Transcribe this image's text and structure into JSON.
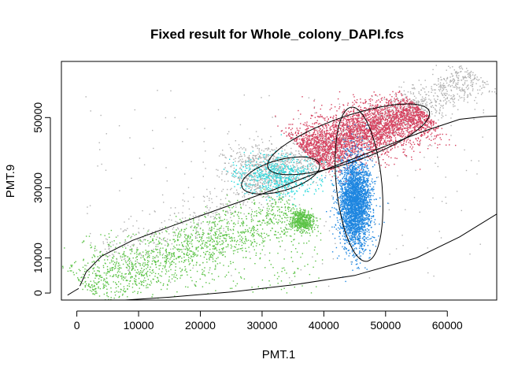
{
  "chart_data": {
    "type": "scatter",
    "title": "Fixed result for Whole_colony_DAPI.fcs",
    "xlabel": "PMT.1",
    "ylabel": "PMT.9",
    "xlim": [
      -2500,
      68000
    ],
    "ylim": [
      -2000,
      66000
    ],
    "xticks": [
      {
        "value": 0,
        "label": "0"
      },
      {
        "value": 10000,
        "label": "10000"
      },
      {
        "value": 20000,
        "label": "20000"
      },
      {
        "value": 30000,
        "label": "30000"
      },
      {
        "value": 40000,
        "label": "40000"
      },
      {
        "value": 50000,
        "label": "50000"
      },
      {
        "value": 60000,
        "label": "60000"
      }
    ],
    "yticks": [
      {
        "value": 0,
        "label": "0"
      },
      {
        "value": 10000,
        "label": "10000"
      },
      {
        "value": 30000,
        "label": "30000"
      },
      {
        "value": 50000,
        "label": "50000"
      }
    ],
    "grid": false,
    "legend": "none",
    "series": [
      {
        "color": "#b0b0b0",
        "clusters": [
          {
            "type": "band",
            "from": [
              28000,
              30000
            ],
            "to": [
              65000,
              62000
            ],
            "spread": 2500,
            "n": 1500
          },
          {
            "type": "band",
            "from": [
              5000,
              10000
            ],
            "to": [
              30000,
              30000
            ],
            "spread": 3000,
            "n": 320
          },
          {
            "type": "blob",
            "center": [
              30000,
              37000
            ],
            "sd": [
              3500,
              2800
            ],
            "n": 400
          },
          {
            "type": "uniform",
            "xrange": [
              1000,
              66000
            ],
            "yrange": [
              2000,
              58000
            ],
            "n": 200
          }
        ]
      },
      {
        "color": "#5bc346",
        "clusters": [
          {
            "type": "band",
            "from": [
              1000,
              2000
            ],
            "to": [
              36000,
              24000
            ],
            "spread": 3500,
            "n": 1400
          },
          {
            "type": "blob",
            "center": [
              36500,
              20500
            ],
            "sd": [
              1000,
              1500
            ],
            "n": 420
          },
          {
            "type": "uniform",
            "xrange": [
              0,
              40000
            ],
            "yrange": [
              0,
              18000
            ],
            "n": 250
          }
        ]
      },
      {
        "color": "#d6415f",
        "clusters": [
          {
            "type": "band",
            "from": [
              37000,
              40000
            ],
            "to": [
              56000,
              52000
            ],
            "spread": 3500,
            "n": 3500
          }
        ]
      },
      {
        "color": "#1e86e0",
        "clusters": [
          {
            "type": "blob",
            "center": [
              45000,
              26000
            ],
            "sd": [
              1300,
              6500
            ],
            "n": 2800
          }
        ]
      },
      {
        "color": "#2ad9dd",
        "clusters": [
          {
            "type": "blob",
            "center": [
              32500,
              33500
            ],
            "sd": [
              3500,
              3000
            ],
            "n": 600
          }
        ]
      }
    ],
    "gates": [
      {
        "name": "debris-gate",
        "type": "ellipse",
        "center": [
          33000,
          33500
        ],
        "axes": [
          7200,
          4000
        ],
        "angle_deg": 35
      },
      {
        "name": "red-gate",
        "type": "ellipse",
        "center": [
          44000,
          43800
        ],
        "axes": [
          15500,
          5800
        ],
        "angle_deg": 35
      },
      {
        "name": "blue-gate",
        "type": "ellipse",
        "center": [
          45700,
          31000
        ],
        "axes": [
          3700,
          22000
        ],
        "angle_deg": 3
      },
      {
        "name": "main-gate",
        "type": "curve",
        "points": [
          [
            500,
            2000
          ],
          [
            1500,
            6000
          ],
          [
            4000,
            10500
          ],
          [
            9000,
            15000
          ],
          [
            16000,
            19500
          ],
          [
            24000,
            24500
          ],
          [
            32000,
            29500
          ],
          [
            40000,
            35000
          ],
          [
            48000,
            40500
          ],
          [
            56000,
            46000
          ],
          [
            62000,
            49500
          ],
          [
            66000,
            50300
          ],
          [
            69000,
            50500
          ]
        ]
      },
      {
        "name": "lower-gate",
        "type": "curve",
        "points": [
          [
            6000,
            -2200
          ],
          [
            15000,
            -1200
          ],
          [
            25000,
            300
          ],
          [
            35000,
            2300
          ],
          [
            45000,
            5000
          ],
          [
            55000,
            10000
          ],
          [
            62000,
            16000
          ],
          [
            68000,
            22500
          ]
        ]
      },
      {
        "name": "left-gate",
        "type": "curve",
        "points": [
          [
            -1500,
            -600
          ],
          [
            -300,
            700
          ],
          [
            300,
            1300
          ]
        ]
      }
    ]
  }
}
